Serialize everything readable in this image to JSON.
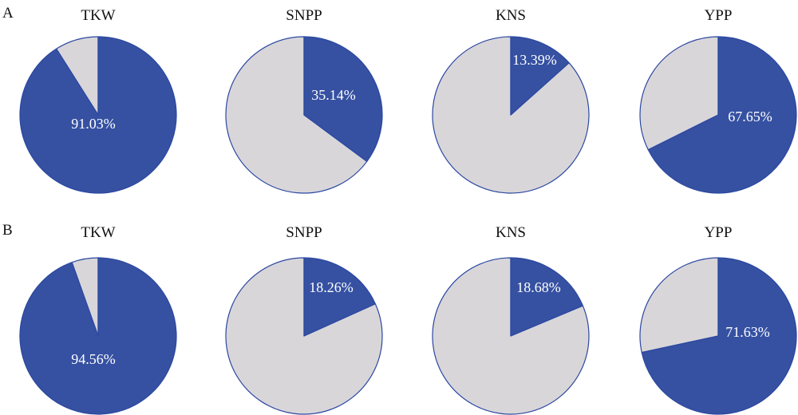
{
  "colors": {
    "highlight": "#3651a2",
    "remainder": "#d9d6da",
    "edge": "#2b48a0",
    "label": "#ffffff",
    "text": "#111111"
  },
  "chart_data": [
    {
      "type": "pie",
      "panel": "A",
      "title": "TKW",
      "values": [
        91.03,
        8.97
      ],
      "label": "91.03%"
    },
    {
      "type": "pie",
      "panel": "A",
      "title": "SNPP",
      "values": [
        35.14,
        64.86
      ],
      "label": "35.14%"
    },
    {
      "type": "pie",
      "panel": "A",
      "title": "KNS",
      "values": [
        13.39,
        86.61
      ],
      "label": "13.39%"
    },
    {
      "type": "pie",
      "panel": "A",
      "title": "YPP",
      "values": [
        67.65,
        32.35
      ],
      "label": "67.65%"
    },
    {
      "type": "pie",
      "panel": "B",
      "title": "TKW",
      "values": [
        94.56,
        5.44
      ],
      "label": "94.56%"
    },
    {
      "type": "pie",
      "panel": "B",
      "title": "SNPP",
      "values": [
        18.26,
        81.74
      ],
      "label": "18.26%"
    },
    {
      "type": "pie",
      "panel": "B",
      "title": "KNS",
      "values": [
        18.68,
        81.32
      ],
      "label": "18.68%"
    },
    {
      "type": "pie",
      "panel": "B",
      "title": "YPP",
      "values": [
        71.63,
        28.37
      ],
      "label": "71.63%"
    }
  ],
  "panels": [
    {
      "letter": "A"
    },
    {
      "letter": "B"
    }
  ]
}
